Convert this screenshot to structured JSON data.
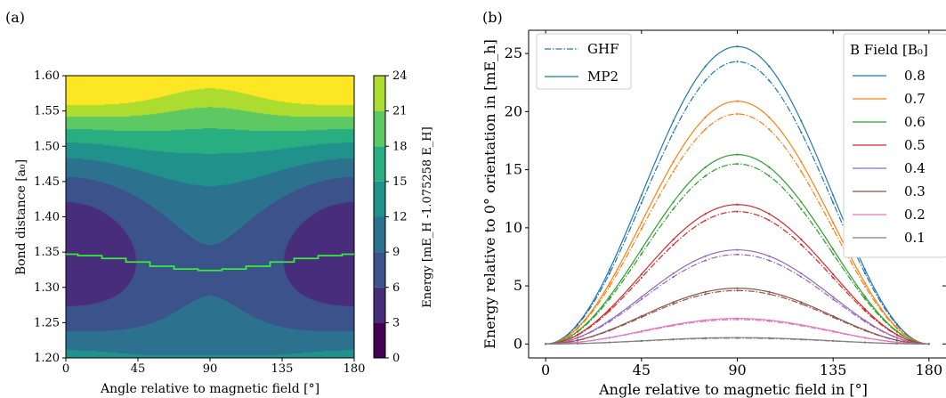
{
  "chart_data": [
    {
      "type": "heatmap",
      "panel_label": "(a)",
      "xlabel": "Angle relative to magnetic field [°]",
      "ylabel": "Bond distance [a₀]",
      "xticks": [
        "0",
        "45",
        "90",
        "135",
        "180"
      ],
      "yticks": [
        "1.20",
        "1.25",
        "1.30",
        "1.35",
        "1.40",
        "1.45",
        "1.50",
        "1.55",
        "1.60"
      ],
      "xlim": [
        0,
        180
      ],
      "ylim": [
        1.2,
        1.6
      ],
      "colorbar": {
        "label": "Energy [mE_H -1.075258 E_H]",
        "ticks": [
          "0",
          "3",
          "6",
          "9",
          "12",
          "15",
          "18",
          "21",
          "24"
        ],
        "levels": [
          0,
          3,
          6,
          9,
          12,
          15,
          18,
          21,
          24
        ],
        "colors": [
          "#440154",
          "#472d7b",
          "#3b528b",
          "#2c728e",
          "#21918c",
          "#28ae80",
          "#5ec962",
          "#addc30",
          "#fde725"
        ]
      },
      "min_energy_path": {
        "color": "#33ee33",
        "x": [
          0,
          15,
          30,
          45,
          60,
          75,
          90,
          105,
          120,
          135,
          150,
          165,
          180
        ],
        "y": [
          1.347,
          1.345,
          1.341,
          1.336,
          1.33,
          1.326,
          1.324,
          1.326,
          1.33,
          1.336,
          1.341,
          1.345,
          1.347
        ]
      }
    },
    {
      "type": "line",
      "panel_label": "(b)",
      "xlabel": "Angle relative to magnetic field in [°]",
      "ylabel": "Energy relative to 0° orientation in [mE_h]",
      "xticks": [
        "0",
        "45",
        "90",
        "135",
        "180"
      ],
      "yticks": [
        "0",
        "5",
        "10",
        "15",
        "20",
        "25"
      ],
      "xlim": [
        -8,
        188
      ],
      "ylim": [
        -1.2,
        27
      ],
      "method_legend": {
        "entries": [
          {
            "label": "GHF",
            "style": "dashdot"
          },
          {
            "label": "MP2",
            "style": "solid"
          }
        ],
        "placement": "top-left"
      },
      "legend_title": "B Field [B₀]",
      "legend_placement": "top-right",
      "x": [
        0,
        15,
        30,
        45,
        60,
        75,
        90,
        105,
        120,
        135,
        150,
        165,
        180
      ],
      "series": [
        {
          "name": "0.8",
          "color": "#1f77b4",
          "mp2_peak": 25.6,
          "ghf_peak": 24.3
        },
        {
          "name": "0.7",
          "color": "#ff7f0e",
          "mp2_peak": 20.9,
          "ghf_peak": 19.8
        },
        {
          "name": "0.6",
          "color": "#2ca02c",
          "mp2_peak": 16.3,
          "ghf_peak": 15.5
        },
        {
          "name": "0.5",
          "color": "#d62728",
          "mp2_peak": 12.0,
          "ghf_peak": 11.4
        },
        {
          "name": "0.4",
          "color": "#9467bd",
          "mp2_peak": 8.1,
          "ghf_peak": 7.7
        },
        {
          "name": "0.3",
          "color": "#8c564b",
          "mp2_peak": 4.8,
          "ghf_peak": 4.6
        },
        {
          "name": "0.2",
          "color": "#e377c2",
          "mp2_peak": 2.2,
          "ghf_peak": 2.1
        },
        {
          "name": "0.1",
          "color": "#7f7f7f",
          "mp2_peak": 0.55,
          "ghf_peak": 0.5
        }
      ]
    }
  ]
}
